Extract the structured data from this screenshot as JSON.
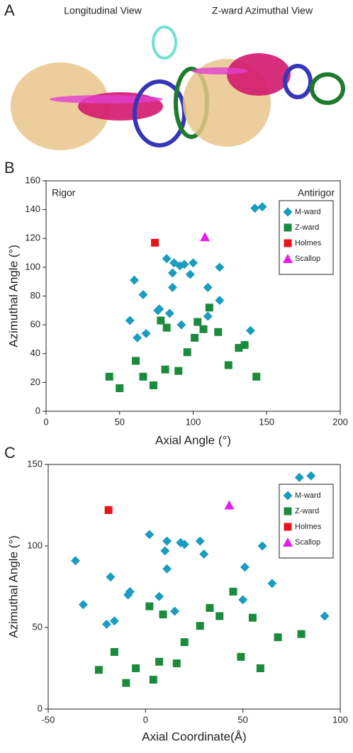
{
  "panel_a": {
    "label": "A",
    "titles": [
      "Longitudinal View",
      "Z-ward Azimuthal View"
    ]
  },
  "chart_data": [
    {
      "type": "scatter",
      "panel_label": "B",
      "x_label": "Axial Angle (°)",
      "y_label": "Azimuthal Angle (°)",
      "annotations": [
        "Rigor",
        "Antirigor"
      ],
      "xlim": [
        0,
        200
      ],
      "xticks": [
        0,
        50,
        100,
        150,
        200
      ],
      "ylim": [
        0,
        160
      ],
      "yticks": [
        0,
        20,
        40,
        60,
        80,
        100,
        120,
        140,
        160
      ],
      "legend": "upper right",
      "series": [
        {
          "name": "M-ward",
          "color": "#1a9bc0",
          "marker": "diamond",
          "x": [
            142,
            147,
            60,
            57,
            66,
            62,
            68,
            76,
            77,
            82,
            84,
            86,
            86,
            87,
            91,
            92,
            94,
            98,
            100,
            118,
            110,
            110,
            118,
            139
          ],
          "values": [
            141,
            142,
            91,
            63,
            81,
            51,
            54,
            70,
            71,
            106,
            68,
            96,
            86,
            103,
            101,
            60,
            102,
            95,
            103,
            100,
            86,
            66,
            77,
            56
          ]
        },
        {
          "name": "Z-ward",
          "color": "#1a8a3c",
          "marker": "square",
          "x": [
            43,
            50,
            61,
            66,
            73,
            78,
            81,
            82,
            90,
            96,
            101,
            103,
            107,
            111,
            117,
            124,
            131,
            135,
            143
          ],
          "values": [
            24,
            16,
            35,
            24,
            18,
            63,
            29,
            58,
            28,
            41,
            51,
            62,
            57,
            72,
            55,
            32,
            44,
            46,
            24
          ]
        },
        {
          "name": "Holmes",
          "color": "#e8141c",
          "marker": "square",
          "x": [
            74
          ],
          "values": [
            117
          ]
        },
        {
          "name": "Scallop",
          "color": "#e61ee6",
          "marker": "triangle",
          "x": [
            108
          ],
          "values": [
            121
          ]
        }
      ]
    },
    {
      "type": "scatter",
      "panel_label": "C",
      "x_label": "Axial Coordinate(Å)",
      "y_label": "Azimuthal Angle (°)",
      "annotations": [],
      "xlim": [
        -50,
        100
      ],
      "xticks": [
        -50,
        0,
        50,
        100
      ],
      "ylim": [
        0,
        150
      ],
      "yticks": [
        0,
        50,
        100,
        150
      ],
      "legend": "upper right",
      "series": [
        {
          "name": "M-ward",
          "color": "#1a9bc0",
          "marker": "diamond",
          "x": [
            79,
            85,
            -36,
            -32,
            -18,
            -20,
            -16,
            -9,
            -8,
            2,
            7,
            10,
            11,
            11,
            15,
            18,
            20,
            28,
            30,
            50,
            51,
            60,
            65,
            92
          ],
          "values": [
            142,
            143,
            91,
            64,
            81,
            52,
            54,
            70,
            72,
            107,
            69,
            97,
            103,
            86,
            60,
            102,
            101,
            103,
            95,
            67,
            87,
            100,
            77,
            57
          ]
        },
        {
          "name": "Z-ward",
          "color": "#1a8a3c",
          "marker": "square",
          "x": [
            -24,
            -16,
            -10,
            -5,
            2,
            4,
            7,
            9,
            16,
            20,
            28,
            33,
            38,
            45,
            49,
            55,
            59,
            68,
            80
          ],
          "values": [
            24,
            35,
            16,
            25,
            63,
            18,
            29,
            58,
            28,
            41,
            51,
            62,
            57,
            72,
            32,
            56,
            25,
            44,
            46
          ]
        },
        {
          "name": "Holmes",
          "color": "#e8141c",
          "marker": "square",
          "x": [
            -19
          ],
          "values": [
            122
          ]
        },
        {
          "name": "Scallop",
          "color": "#e61ee6",
          "marker": "triangle",
          "x": [
            43
          ],
          "values": [
            125
          ]
        }
      ]
    }
  ]
}
